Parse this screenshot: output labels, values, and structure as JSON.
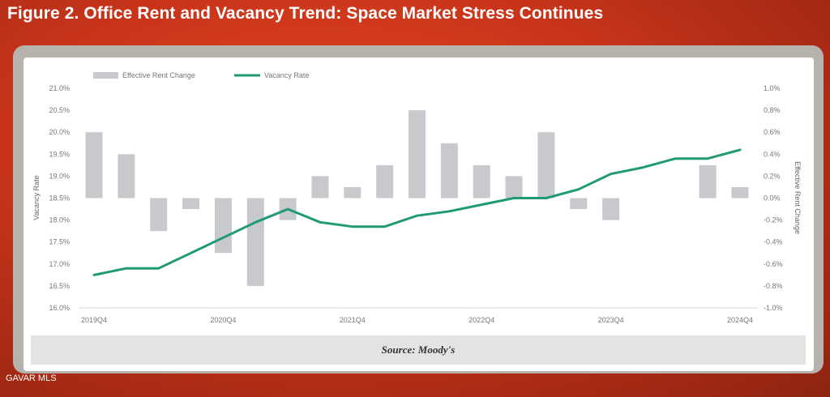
{
  "title": "Figure 2. Office Rent and Vacancy Trend: Space Market Stress Continues",
  "source": "Source: Moody's",
  "watermark": "GAVAR MLS",
  "colors": {
    "bar": "#c8c9cd",
    "line": "#1f9a74",
    "background": "#c8341a"
  },
  "chart_data": {
    "type": "bar+line",
    "legend": [
      "Effective Rent Change",
      "Vacancy Rate"
    ],
    "legend_position": "top-left",
    "x_tick_labels": [
      "2019Q4",
      "2020Q4",
      "2021Q4",
      "2022Q4",
      "2023Q4",
      "2024Q4"
    ],
    "periods": [
      "2019Q4",
      "2020Q1",
      "2020Q2",
      "2020Q3",
      "2020Q4",
      "2021Q1",
      "2021Q2",
      "2021Q3",
      "2021Q4",
      "2022Q1",
      "2022Q2",
      "2022Q3",
      "2022Q4",
      "2023Q1",
      "2023Q2",
      "2023Q3",
      "2023Q4",
      "2024Q1",
      "2024Q2",
      "2024Q3",
      "2024Q4"
    ],
    "series": [
      {
        "name": "Effective Rent Change",
        "type": "bar",
        "axis": "right",
        "values": [
          0.6,
          0.4,
          -0.3,
          -0.1,
          -0.5,
          -0.8,
          -0.2,
          0.2,
          0.1,
          0.3,
          0.8,
          0.5,
          0.3,
          0.2,
          0.6,
          -0.1,
          -0.2,
          null,
          null,
          0.3,
          0.1
        ]
      },
      {
        "name": "Vacancy Rate",
        "type": "line",
        "axis": "left",
        "values": [
          16.75,
          16.9,
          16.9,
          17.25,
          17.6,
          17.95,
          18.25,
          17.95,
          17.85,
          17.85,
          18.1,
          18.2,
          18.35,
          18.5,
          18.5,
          18.7,
          19.05,
          19.2,
          19.4,
          19.4,
          19.6
        ]
      }
    ],
    "left_axis": {
      "label": "Vacancy Rate",
      "ylim": [
        16.0,
        21.0
      ],
      "ticks": [
        "16.0%",
        "16.5%",
        "17.0%",
        "17.5%",
        "18.0%",
        "18.5%",
        "19.0%",
        "19.5%",
        "20.0%",
        "20.5%",
        "21.0%"
      ]
    },
    "right_axis": {
      "label": "Effective Rent Change",
      "ylim": [
        -1.0,
        1.0
      ],
      "ticks": [
        "-1.0%",
        "-0.8%",
        "-0.6%",
        "-0.4%",
        "-0.2%",
        "0.0%",
        "0.2%",
        "0.4%",
        "0.6%",
        "0.8%",
        "1.0%"
      ]
    },
    "grid": false
  }
}
